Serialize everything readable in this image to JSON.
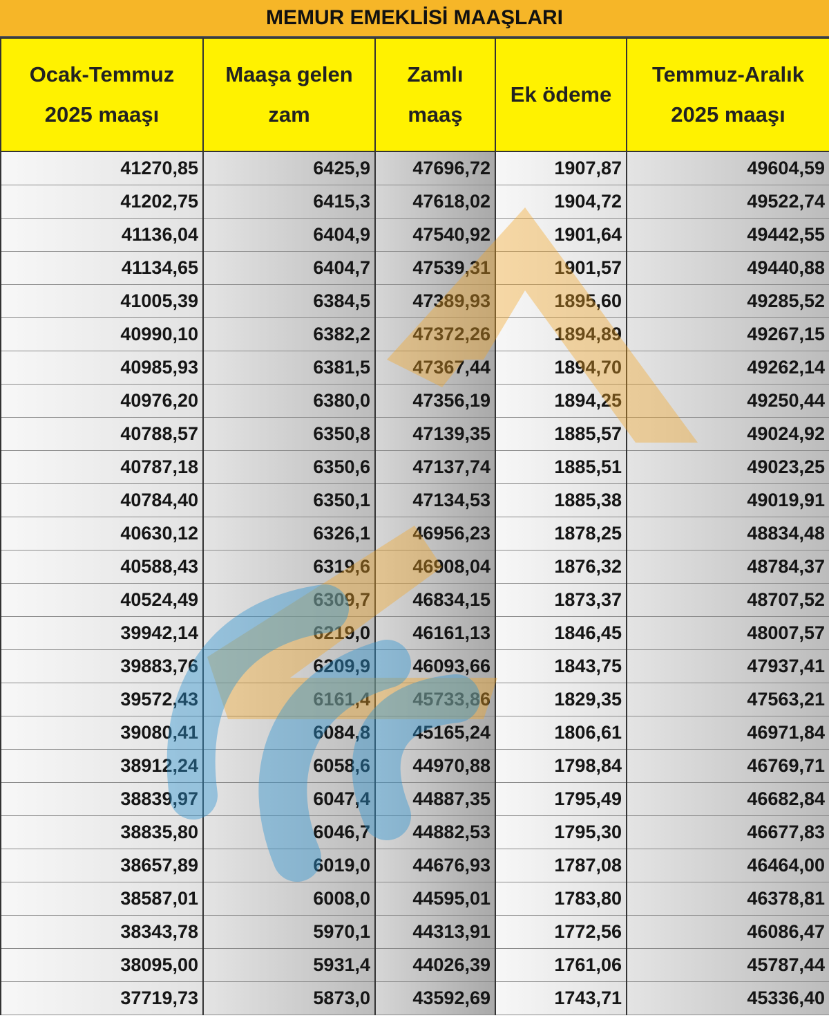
{
  "title": "MEMUR EMEKLİSİ MAAŞLARI",
  "headers": [
    {
      "line1": "Ocak-Temmuz",
      "line2": "2025 maaşı"
    },
    {
      "line1": "Maaşa gelen",
      "line2": "zam"
    },
    {
      "line1": "Zamlı",
      "line2": "maaş"
    },
    {
      "line1": "Ek ödeme",
      "line2": ""
    },
    {
      "line1": "Temmuz-Aralık",
      "line2": "2025 maaşı"
    }
  ],
  "rows": [
    [
      "41270,85",
      "6425,9",
      "47696,72",
      "1907,87",
      "49604,59"
    ],
    [
      "41202,75",
      "6415,3",
      "47618,02",
      "1904,72",
      "49522,74"
    ],
    [
      "41136,04",
      "6404,9",
      "47540,92",
      "1901,64",
      "49442,55"
    ],
    [
      "41134,65",
      "6404,7",
      "47539,31",
      "1901,57",
      "49440,88"
    ],
    [
      "41005,39",
      "6384,5",
      "47389,93",
      "1895,60",
      "49285,52"
    ],
    [
      "40990,10",
      "6382,2",
      "47372,26",
      "1894,89",
      "49267,15"
    ],
    [
      "40985,93",
      "6381,5",
      "47367,44",
      "1894,70",
      "49262,14"
    ],
    [
      "40976,20",
      "6380,0",
      "47356,19",
      "1894,25",
      "49250,44"
    ],
    [
      "40788,57",
      "6350,8",
      "47139,35",
      "1885,57",
      "49024,92"
    ],
    [
      "40787,18",
      "6350,6",
      "47137,74",
      "1885,51",
      "49023,25"
    ],
    [
      "40784,40",
      "6350,1",
      "47134,53",
      "1885,38",
      "49019,91"
    ],
    [
      "40630,12",
      "6326,1",
      "46956,23",
      "1878,25",
      "48834,48"
    ],
    [
      "40588,43",
      "6319,6",
      "46908,04",
      "1876,32",
      "48784,37"
    ],
    [
      "40524,49",
      "6309,7",
      "46834,15",
      "1873,37",
      "48707,52"
    ],
    [
      "39942,14",
      "6219,0",
      "46161,13",
      "1846,45",
      "48007,57"
    ],
    [
      "39883,76",
      "6209,9",
      "46093,66",
      "1843,75",
      "47937,41"
    ],
    [
      "39572,43",
      "6161,4",
      "45733,86",
      "1829,35",
      "47563,21"
    ],
    [
      "39080,41",
      "6084,8",
      "45165,24",
      "1806,61",
      "46971,84"
    ],
    [
      "38912,24",
      "6058,6",
      "44970,88",
      "1798,84",
      "46769,71"
    ],
    [
      "38839,97",
      "6047,4",
      "44887,35",
      "1795,49",
      "46682,84"
    ],
    [
      "38835,80",
      "6046,7",
      "44882,53",
      "1795,30",
      "46677,83"
    ],
    [
      "38657,89",
      "6019,0",
      "44676,93",
      "1787,08",
      "46464,00"
    ],
    [
      "38587,01",
      "6008,0",
      "44595,01",
      "1783,80",
      "46378,81"
    ],
    [
      "38343,78",
      "5970,1",
      "44313,91",
      "1772,56",
      "46086,47"
    ],
    [
      "38095,00",
      "5931,4",
      "44026,39",
      "1761,06",
      "45787,44"
    ],
    [
      "37719,73",
      "5873,0",
      "43592,69",
      "1743,71",
      "45336,40"
    ]
  ],
  "colors": {
    "title_background": "#f6b628",
    "header_background": "#fff200",
    "watermark_blue": "#2e95d3",
    "watermark_orange": "#f5a623"
  },
  "icons": [
    "watermark-logo-icon"
  ]
}
